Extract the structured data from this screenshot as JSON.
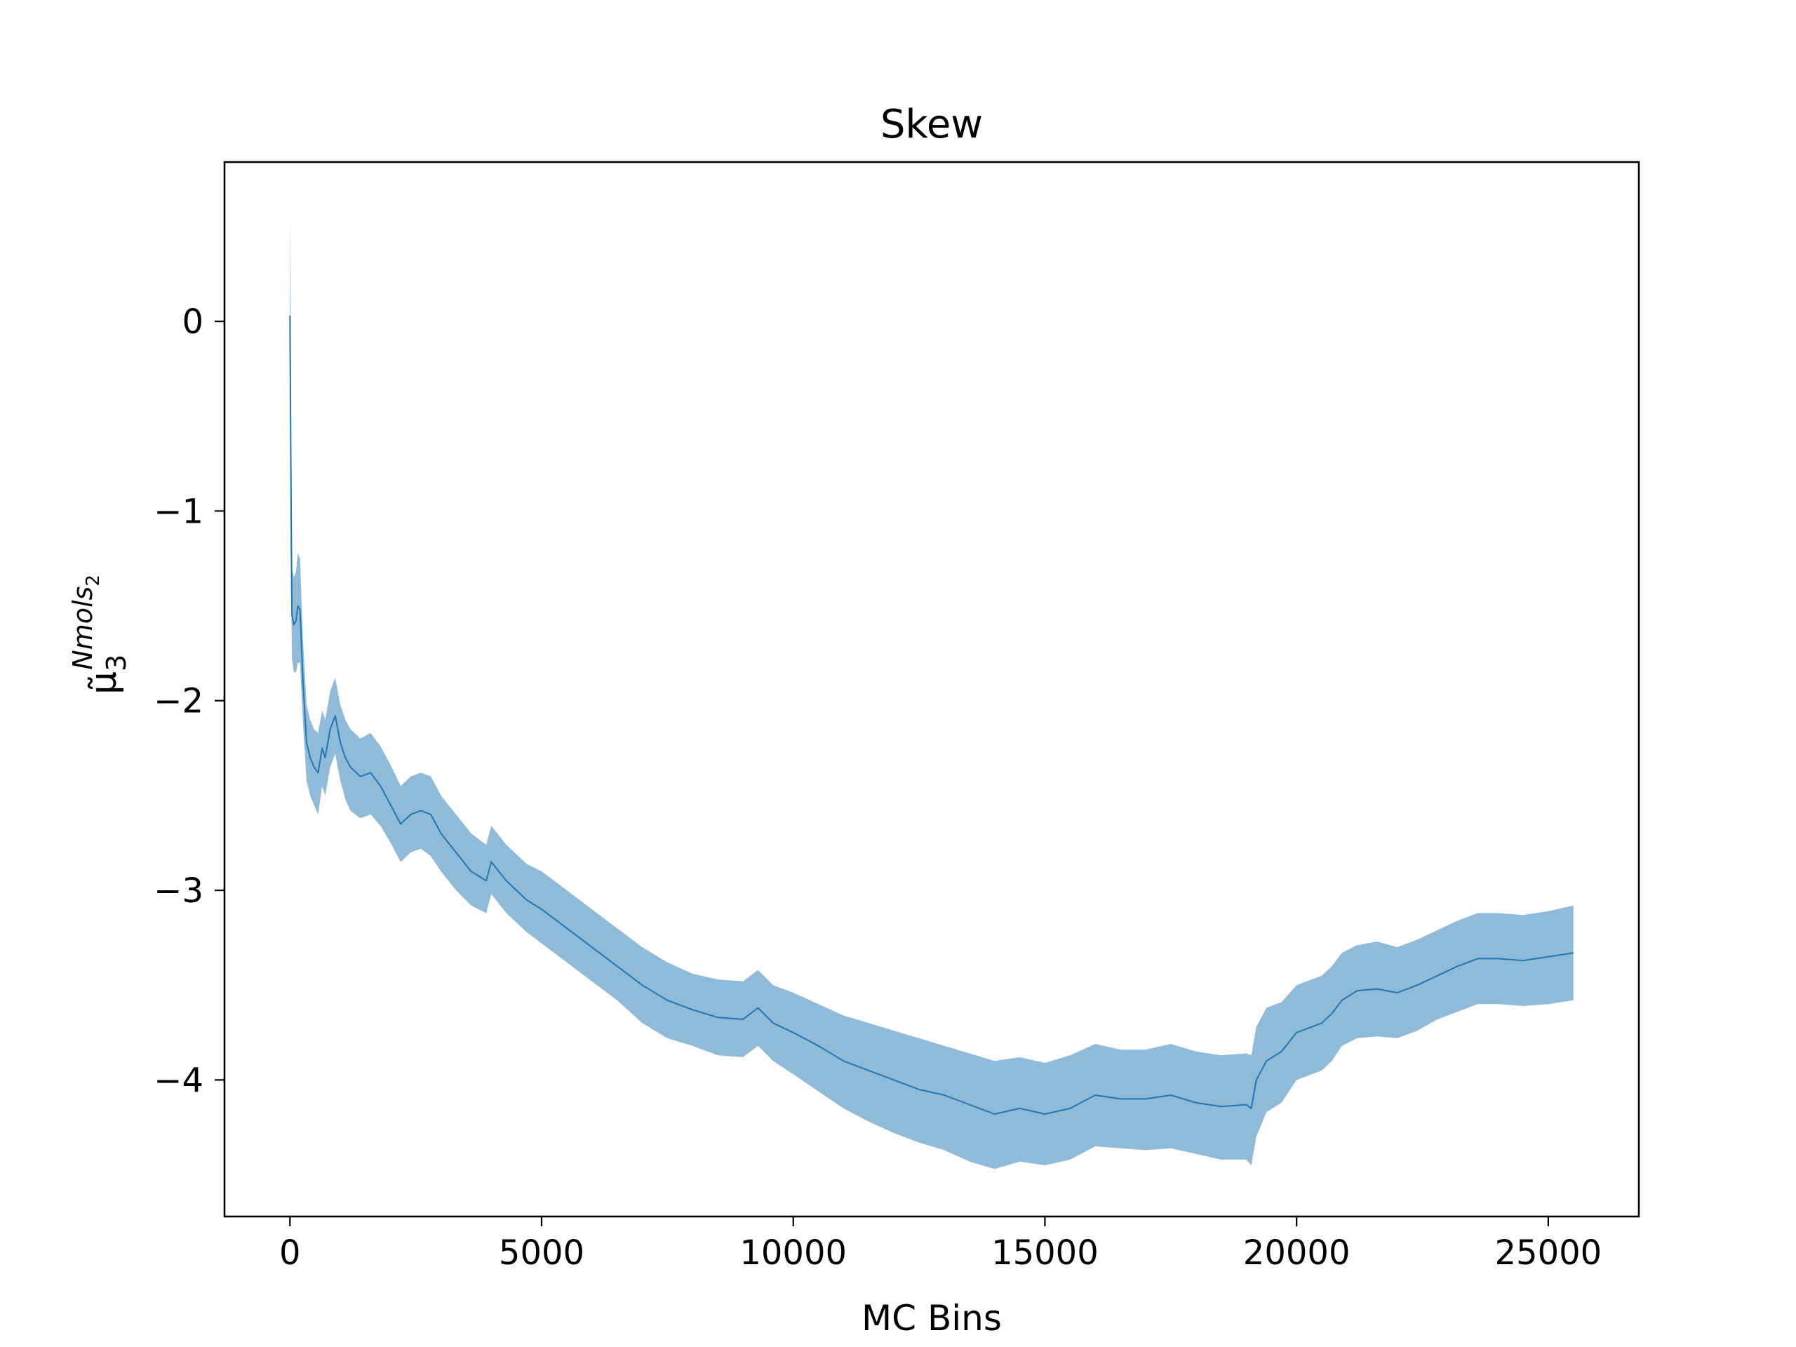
{
  "chart_data": {
    "type": "line",
    "title": "Skew",
    "xlabel": "MC Bins",
    "ylabel_main": "μ̃",
    "ylabel_subscript": "3",
    "ylabel_superscript": "Nmols",
    "ylabel_superscript_subscript": "2",
    "xlim": [
      -1300,
      26800
    ],
    "ylim": [
      -4.72,
      0.84
    ],
    "xticks": [
      0,
      5000,
      10000,
      15000,
      20000,
      25000
    ],
    "xtick_labels": [
      "0",
      "5000",
      "10000",
      "15000",
      "20000",
      "25000"
    ],
    "yticks": [
      0,
      -1,
      -2,
      -3,
      -4
    ],
    "ytick_labels": [
      "0",
      "−1",
      "−2",
      "−3",
      "−4"
    ],
    "grid": false,
    "series": [
      {
        "color": "#1f77b4",
        "band_color": "#1f77b4",
        "band_opacity": 0.5,
        "x": [
          0,
          15,
          40,
          80,
          120,
          160,
          200,
          260,
          330,
          400,
          480,
          560,
          640,
          700,
          800,
          900,
          1000,
          1100,
          1200,
          1400,
          1600,
          1800,
          2000,
          2200,
          2400,
          2600,
          2800,
          3000,
          3300,
          3600,
          3900,
          4000,
          4300,
          4700,
          5000,
          5500,
          6000,
          6500,
          7000,
          7500,
          8000,
          8500,
          9000,
          9300,
          9600,
          10000,
          10500,
          11000,
          11500,
          12000,
          12500,
          13000,
          13500,
          14000,
          14500,
          15000,
          15500,
          16000,
          16500,
          17000,
          17500,
          18000,
          18500,
          19000,
          19100,
          19200,
          19400,
          19700,
          20000,
          20300,
          20500,
          20700,
          20900,
          21200,
          21600,
          22000,
          22400,
          22800,
          23200,
          23600,
          24000,
          24500,
          25000,
          25500
        ],
        "y": [
          0.03,
          -0.6,
          -1.55,
          -1.6,
          -1.58,
          -1.5,
          -1.52,
          -1.9,
          -2.22,
          -2.3,
          -2.35,
          -2.38,
          -2.25,
          -2.3,
          -2.15,
          -2.08,
          -2.22,
          -2.3,
          -2.35,
          -2.4,
          -2.38,
          -2.45,
          -2.55,
          -2.65,
          -2.6,
          -2.58,
          -2.6,
          -2.7,
          -2.8,
          -2.9,
          -2.95,
          -2.85,
          -2.95,
          -3.05,
          -3.1,
          -3.2,
          -3.3,
          -3.4,
          -3.5,
          -3.58,
          -3.63,
          -3.67,
          -3.68,
          -3.62,
          -3.7,
          -3.75,
          -3.82,
          -3.9,
          -3.95,
          -4.0,
          -4.05,
          -4.08,
          -4.13,
          -4.18,
          -4.15,
          -4.18,
          -4.15,
          -4.08,
          -4.1,
          -4.1,
          -4.08,
          -4.12,
          -4.14,
          -4.13,
          -4.15,
          -4.0,
          -3.9,
          -3.85,
          -3.75,
          -3.72,
          -3.7,
          -3.65,
          -3.58,
          -3.53,
          -3.52,
          -3.54,
          -3.5,
          -3.45,
          -3.4,
          -3.36,
          -3.36,
          -3.37,
          -3.35,
          -3.33
        ],
        "lower": [
          -0.45,
          -1.25,
          -1.78,
          -1.85,
          -1.85,
          -1.8,
          -1.8,
          -2.12,
          -2.42,
          -2.5,
          -2.55,
          -2.6,
          -2.45,
          -2.5,
          -2.35,
          -2.28,
          -2.42,
          -2.52,
          -2.58,
          -2.62,
          -2.6,
          -2.66,
          -2.75,
          -2.85,
          -2.8,
          -2.78,
          -2.82,
          -2.9,
          -3.0,
          -3.08,
          -3.12,
          -3.02,
          -3.12,
          -3.22,
          -3.28,
          -3.38,
          -3.48,
          -3.58,
          -3.7,
          -3.78,
          -3.82,
          -3.87,
          -3.88,
          -3.82,
          -3.9,
          -3.97,
          -4.06,
          -4.15,
          -4.22,
          -4.28,
          -4.33,
          -4.37,
          -4.43,
          -4.47,
          -4.43,
          -4.45,
          -4.42,
          -4.35,
          -4.36,
          -4.37,
          -4.36,
          -4.39,
          -4.42,
          -4.42,
          -4.45,
          -4.3,
          -4.17,
          -4.12,
          -4.0,
          -3.97,
          -3.95,
          -3.9,
          -3.82,
          -3.78,
          -3.77,
          -3.78,
          -3.74,
          -3.68,
          -3.64,
          -3.6,
          -3.6,
          -3.61,
          -3.6,
          -3.58
        ],
        "upper": [
          0.55,
          0.05,
          -1.3,
          -1.35,
          -1.32,
          -1.22,
          -1.25,
          -1.68,
          -2.02,
          -2.1,
          -2.15,
          -2.17,
          -2.05,
          -2.1,
          -1.95,
          -1.88,
          -2.02,
          -2.1,
          -2.15,
          -2.2,
          -2.17,
          -2.24,
          -2.34,
          -2.45,
          -2.4,
          -2.38,
          -2.4,
          -2.5,
          -2.6,
          -2.7,
          -2.76,
          -2.66,
          -2.76,
          -2.86,
          -2.9,
          -3.0,
          -3.1,
          -3.2,
          -3.3,
          -3.38,
          -3.44,
          -3.47,
          -3.48,
          -3.42,
          -3.5,
          -3.54,
          -3.6,
          -3.66,
          -3.7,
          -3.74,
          -3.78,
          -3.82,
          -3.86,
          -3.9,
          -3.88,
          -3.91,
          -3.87,
          -3.81,
          -3.84,
          -3.84,
          -3.81,
          -3.85,
          -3.87,
          -3.86,
          -3.87,
          -3.72,
          -3.62,
          -3.59,
          -3.5,
          -3.47,
          -3.45,
          -3.4,
          -3.33,
          -3.29,
          -3.27,
          -3.3,
          -3.26,
          -3.21,
          -3.16,
          -3.12,
          -3.12,
          -3.13,
          -3.11,
          -3.08
        ]
      }
    ]
  }
}
